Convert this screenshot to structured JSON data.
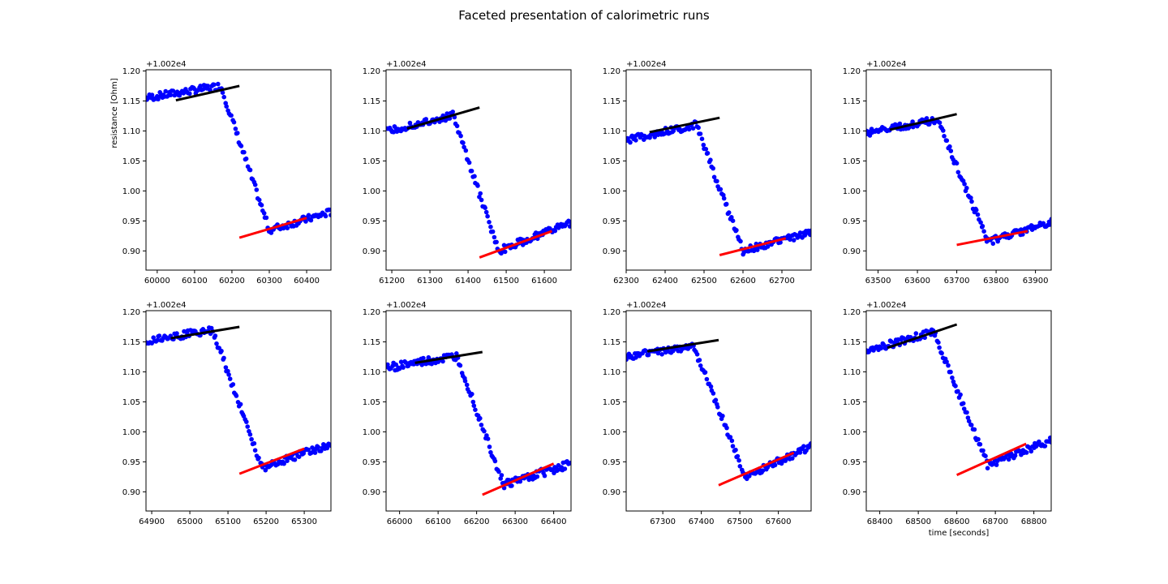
{
  "figure": {
    "title": "Faceted presentation of calorimetric runs",
    "colors": {
      "points": "#0000ff",
      "pre_fit": "#000000",
      "post_fit": "#ff0000",
      "axes": "#000000"
    }
  },
  "chart_data": [
    {
      "type": "scatter",
      "ylabel": "resistance [Ohm]",
      "xlabel": "",
      "offset_text": "+1.002e4",
      "xlim": [
        59970,
        60465
      ],
      "ylim": [
        0.868,
        1.202
      ],
      "xticks": [
        60000,
        60100,
        60200,
        60300,
        60400
      ],
      "yticks": [
        0.9,
        0.95,
        1.0,
        1.05,
        1.1,
        1.15,
        1.2
      ],
      "profile": {
        "x_start": 59970,
        "x_end": 60465,
        "drop_start": 60170,
        "drop_end": 60300,
        "pre_level": 1.155,
        "pre_slope": 0.0001,
        "post_level": 0.935,
        "post_slope": 0.00018,
        "noise": 0.006
      },
      "series": [
        {
          "role": "pre-fit",
          "color": "#000000",
          "x": [
            60050,
            60220
          ],
          "y": [
            1.151,
            1.175
          ]
        },
        {
          "role": "post-fit",
          "color": "#ff0000",
          "x": [
            60220,
            60400
          ],
          "y": [
            0.922,
            0.955
          ]
        }
      ]
    },
    {
      "type": "scatter",
      "ylabel": "",
      "xlabel": "",
      "offset_text": "+1.002e4",
      "xlim": [
        61185,
        61670
      ],
      "ylim": [
        0.868,
        1.202
      ],
      "xticks": [
        61200,
        61300,
        61400,
        61500,
        61600
      ],
      "yticks": [
        0.9,
        0.95,
        1.0,
        1.05,
        1.1,
        1.15,
        1.2
      ],
      "profile": {
        "x_start": 61185,
        "x_end": 61670,
        "drop_start": 61360,
        "drop_end": 61480,
        "pre_level": 1.098,
        "pre_slope": 0.00016,
        "post_level": 0.9,
        "post_slope": 0.00025,
        "noise": 0.006
      },
      "series": [
        {
          "role": "pre-fit",
          "color": "#000000",
          "x": [
            61240,
            61430
          ],
          "y": [
            1.104,
            1.139
          ]
        },
        {
          "role": "post-fit",
          "color": "#ff0000",
          "x": [
            61430,
            61620
          ],
          "y": [
            0.889,
            0.933
          ]
        }
      ]
    },
    {
      "type": "scatter",
      "ylabel": "",
      "xlabel": "",
      "offset_text": "+1.002e4",
      "xlim": [
        62300,
        62775
      ],
      "ylim": [
        0.868,
        1.202
      ],
      "xticks": [
        62300,
        62400,
        62500,
        62600,
        62700
      ],
      "yticks": [
        0.9,
        0.95,
        1.0,
        1.05,
        1.1,
        1.15,
        1.2
      ],
      "profile": {
        "x_start": 62300,
        "x_end": 62775,
        "drop_start": 62480,
        "drop_end": 62600,
        "pre_level": 1.085,
        "pre_slope": 0.00014,
        "post_level": 0.9,
        "post_slope": 0.00018,
        "noise": 0.006
      },
      "series": [
        {
          "role": "pre-fit",
          "color": "#000000",
          "x": [
            62360,
            62540
          ],
          "y": [
            1.098,
            1.122
          ]
        },
        {
          "role": "post-fit",
          "color": "#ff0000",
          "x": [
            62540,
            62710
          ],
          "y": [
            0.893,
            0.921
          ]
        }
      ]
    },
    {
      "type": "scatter",
      "ylabel": "",
      "xlabel": "",
      "offset_text": "+1.002e4",
      "xlim": [
        63470,
        63940
      ],
      "ylim": [
        0.868,
        1.202
      ],
      "xticks": [
        63500,
        63600,
        63700,
        63800,
        63900
      ],
      "yticks": [
        0.9,
        0.95,
        1.0,
        1.05,
        1.1,
        1.15,
        1.2
      ],
      "profile": {
        "x_start": 63470,
        "x_end": 63940,
        "drop_start": 63650,
        "drop_end": 63780,
        "pre_level": 1.096,
        "pre_slope": 0.00013,
        "post_level": 0.915,
        "post_slope": 0.0002,
        "noise": 0.006
      },
      "series": [
        {
          "role": "pre-fit",
          "color": "#000000",
          "x": [
            63530,
            63700
          ],
          "y": [
            1.102,
            1.128
          ]
        },
        {
          "role": "post-fit",
          "color": "#ff0000",
          "x": [
            63700,
            63880
          ],
          "y": [
            0.91,
            0.933
          ]
        }
      ]
    },
    {
      "type": "scatter",
      "ylabel": "",
      "xlabel": "",
      "offset_text": "+1.002e4",
      "xlim": [
        64885,
        65370
      ],
      "ylim": [
        0.868,
        1.202
      ],
      "xticks": [
        64900,
        65000,
        65100,
        65200,
        65300
      ],
      "yticks": [
        0.9,
        0.95,
        1.0,
        1.05,
        1.1,
        1.15,
        1.2
      ],
      "profile": {
        "x_start": 64885,
        "x_end": 65370,
        "drop_start": 65060,
        "drop_end": 65190,
        "pre_level": 1.152,
        "pre_slope": 0.0001,
        "post_level": 0.94,
        "post_slope": 0.00022,
        "noise": 0.006
      },
      "series": [
        {
          "role": "pre-fit",
          "color": "#000000",
          "x": [
            64950,
            65130
          ],
          "y": [
            1.156,
            1.175
          ]
        },
        {
          "role": "post-fit",
          "color": "#ff0000",
          "x": [
            65130,
            65300
          ],
          "y": [
            0.93,
            0.972
          ]
        }
      ]
    },
    {
      "type": "scatter",
      "ylabel": "",
      "xlabel": "",
      "offset_text": "+1.002e4",
      "xlim": [
        65965,
        66445
      ],
      "ylim": [
        0.868,
        1.202
      ],
      "xticks": [
        66000,
        66100,
        66200,
        66300,
        66400
      ],
      "yticks": [
        0.9,
        0.95,
        1.0,
        1.05,
        1.1,
        1.15,
        1.2
      ],
      "profile": {
        "x_start": 65965,
        "x_end": 66445,
        "drop_start": 66150,
        "drop_end": 66270,
        "pre_level": 1.107,
        "pre_slope": 0.0001,
        "post_level": 0.912,
        "post_slope": 0.0002,
        "noise": 0.007
      },
      "series": [
        {
          "role": "pre-fit",
          "color": "#000000",
          "x": [
            66040,
            66215
          ],
          "y": [
            1.115,
            1.133
          ]
        },
        {
          "role": "post-fit",
          "color": "#ff0000",
          "x": [
            66215,
            66400
          ],
          "y": [
            0.895,
            0.947
          ]
        }
      ]
    },
    {
      "type": "scatter",
      "ylabel": "",
      "xlabel": "",
      "offset_text": "+1.002e4",
      "xlim": [
        67205,
        67685
      ],
      "ylim": [
        0.868,
        1.202
      ],
      "xticks": [
        67300,
        67400,
        67500,
        67600
      ],
      "yticks": [
        0.9,
        0.95,
        1.0,
        1.05,
        1.1,
        1.15,
        1.2
      ],
      "profile": {
        "x_start": 67205,
        "x_end": 67685,
        "drop_start": 67380,
        "drop_end": 67515,
        "pre_level": 1.125,
        "pre_slope": 0.0001,
        "post_level": 0.925,
        "post_slope": 0.0003,
        "noise": 0.006
      },
      "series": [
        {
          "role": "pre-fit",
          "color": "#000000",
          "x": [
            67260,
            67445
          ],
          "y": [
            1.134,
            1.153
          ]
        },
        {
          "role": "post-fit",
          "color": "#ff0000",
          "x": [
            67445,
            67640
          ],
          "y": [
            0.911,
            0.965
          ]
        }
      ]
    },
    {
      "type": "scatter",
      "ylabel": "",
      "xlabel": "time [seconds]",
      "offset_text": "+1.002e4",
      "xlim": [
        68365,
        68845
      ],
      "ylim": [
        0.868,
        1.202
      ],
      "xticks": [
        68400,
        68500,
        68600,
        68700,
        68800
      ],
      "yticks": [
        0.9,
        0.95,
        1.0,
        1.05,
        1.1,
        1.15,
        1.2
      ],
      "profile": {
        "x_start": 68365,
        "x_end": 68845,
        "drop_start": 68540,
        "drop_end": 68680,
        "pre_level": 1.135,
        "pre_slope": 0.00018,
        "post_level": 0.945,
        "post_slope": 0.00025,
        "noise": 0.006
      },
      "series": [
        {
          "role": "pre-fit",
          "color": "#000000",
          "x": [
            68420,
            68600
          ],
          "y": [
            1.14,
            1.179
          ]
        },
        {
          "role": "post-fit",
          "color": "#ff0000",
          "x": [
            68600,
            68780
          ],
          "y": [
            0.928,
            0.98
          ]
        }
      ]
    }
  ]
}
